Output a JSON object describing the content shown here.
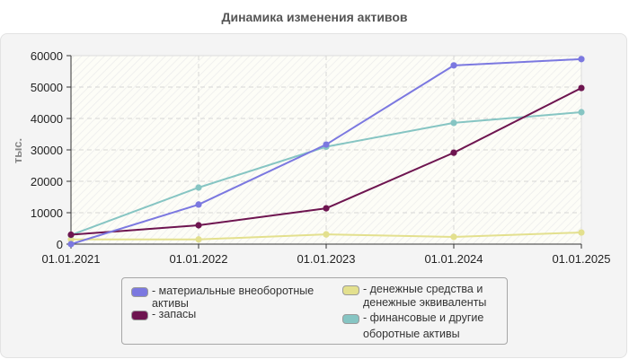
{
  "title": "Динамика изменения активов",
  "chart_data": {
    "type": "line",
    "title": "Динамика изменения активов",
    "xlabel": "",
    "ylabel": "тыс.",
    "ylim": [
      0,
      60000
    ],
    "yticks": [
      0,
      10000,
      20000,
      30000,
      40000,
      50000,
      60000
    ],
    "grid": true,
    "legend_position": "bottom",
    "categories": [
      "01.01.2021",
      "01.01.2022",
      "01.01.2023",
      "01.01.2024",
      "01.01.2025"
    ],
    "series": [
      {
        "name": "материальные внеоборотные активы",
        "color": "#7b78e0",
        "values": [
          0,
          12600,
          31700,
          56900,
          58900
        ]
      },
      {
        "name": "запасы",
        "color": "#6e1550",
        "values": [
          3000,
          6000,
          11400,
          29100,
          49700
        ]
      },
      {
        "name": "денежные средства и денежные эквиваленты",
        "color": "#e3e08e",
        "values": [
          1500,
          1500,
          3100,
          2300,
          3700
        ]
      },
      {
        "name": "финансовые и другие оборотные активы",
        "color": "#86c5c3",
        "values": [
          2900,
          18000,
          31000,
          38600,
          42000
        ]
      }
    ]
  },
  "axis": {
    "ylabel": "тыс.",
    "yticks": [
      "0",
      "10000",
      "20000",
      "30000",
      "40000",
      "50000",
      "60000"
    ],
    "xticks": [
      "01.01.2021",
      "01.01.2022",
      "01.01.2023",
      "01.01.2024",
      "01.01.2025"
    ]
  },
  "legend": {
    "items": [
      {
        "label": "- материальные внеоборотные\nактивы",
        "color": "#7b78e0"
      },
      {
        "label": "- запасы",
        "color": "#6e1550"
      },
      {
        "label": "- денежные средства и\nденежные эквиваленты",
        "color": "#e3e08e"
      },
      {
        "label": "- финансовые и другие\nоборотные активы",
        "color": "#86c5c3"
      }
    ]
  }
}
